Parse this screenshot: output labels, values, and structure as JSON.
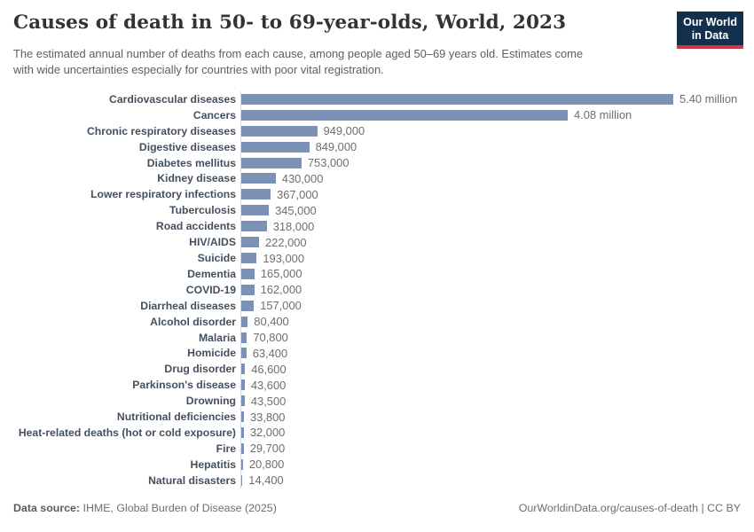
{
  "header": {
    "title": "Causes of death in 50- to 69-year-olds, World, 2023",
    "subtitle_line1": "The estimated annual number of deaths from each cause, among people aged 50–69 years old. Estimates come",
    "subtitle_line2": "with wide uncertainties especially for countries with poor vital registration.",
    "logo": {
      "line1": "Our World",
      "line2": "in Data",
      "bg_color": "#12304e",
      "accent_color": "#cf3545"
    }
  },
  "chart_data": {
    "type": "bar",
    "orientation": "horizontal",
    "title": "Causes of death in 50- to 69-year-olds, World, 2023",
    "xlabel": "",
    "ylabel": "",
    "xlim": [
      0,
      5400000
    ],
    "grid": false,
    "legend": false,
    "bar_color": "#7b92b6",
    "axis_color": "#d7dbde",
    "label_color": "#44505e",
    "value_color": "#6e6e6e",
    "categories": [
      "Cardiovascular diseases",
      "Cancers",
      "Chronic respiratory diseases",
      "Digestive diseases",
      "Diabetes mellitus",
      "Kidney disease",
      "Lower respiratory infections",
      "Tuberculosis",
      "Road accidents",
      "HIV/AIDS",
      "Suicide",
      "Dementia",
      "COVID-19",
      "Diarrheal diseases",
      "Alcohol disorder",
      "Malaria",
      "Homicide",
      "Drug disorder",
      "Parkinson's disease",
      "Drowning",
      "Nutritional deficiencies",
      "Heat-related deaths (hot or cold exposure)",
      "Fire",
      "Hepatitis",
      "Natural disasters"
    ],
    "values": [
      5400000,
      4080000,
      949000,
      849000,
      753000,
      430000,
      367000,
      345000,
      318000,
      222000,
      193000,
      165000,
      162000,
      157000,
      80400,
      70800,
      63400,
      46600,
      43600,
      43500,
      33800,
      32000,
      29700,
      20800,
      14400
    ],
    "value_labels": [
      "5.40 million",
      "4.08 million",
      "949,000",
      "849,000",
      "753,000",
      "430,000",
      "367,000",
      "345,000",
      "318,000",
      "222,000",
      "193,000",
      "165,000",
      "162,000",
      "157,000",
      "80,400",
      "70,800",
      "63,400",
      "46,600",
      "43,600",
      "43,500",
      "33,800",
      "32,000",
      "29,700",
      "20,800",
      "14,400"
    ]
  },
  "footer": {
    "source_label": "Data source:",
    "source_text": " IHME, Global Burden of Disease (2025)",
    "credit": "OurWorldinData.org/causes-of-death | CC BY"
  }
}
